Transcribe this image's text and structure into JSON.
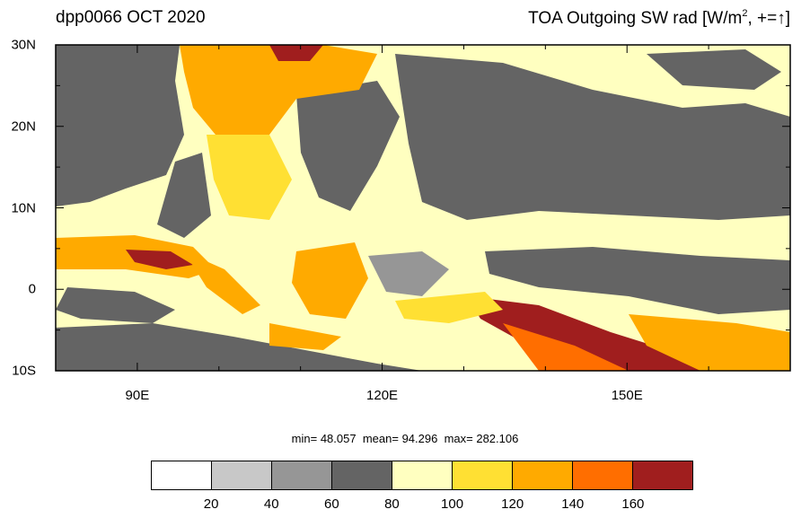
{
  "map": {
    "title_left": "dpp0066 OCT 2020",
    "title_right_text": "TOA Outgoing SW rad [W/m",
    "title_right_sup": "2",
    "title_right_suffix": ", +=",
    "title_right_arrow": "↑",
    "title_right_close": "]",
    "lat_labels": [
      "30N",
      "20N",
      "10N",
      "0",
      "10S"
    ],
    "lon_labels": [
      "90E",
      "120E",
      "150E"
    ],
    "lat_range": [
      -10,
      30
    ],
    "lon_range": [
      80,
      170
    ],
    "stats": {
      "min_label": "min=",
      "min": "48.057",
      "mean_label": "mean=",
      "mean": "94.296",
      "max_label": "max=",
      "max": "282.106"
    }
  },
  "colorbar": {
    "colors": [
      "#ffffff",
      "#c8c8c8",
      "#969696",
      "#646464",
      "#ffffc0",
      "#ffe033",
      "#ffaa00",
      "#ff6e00",
      "#a01e1e"
    ],
    "tick_labels": [
      "20",
      "40",
      "60",
      "80",
      "100",
      "120",
      "140",
      "160"
    ],
    "tick_values": [
      20,
      40,
      60,
      80,
      100,
      120,
      140,
      160
    ]
  }
}
